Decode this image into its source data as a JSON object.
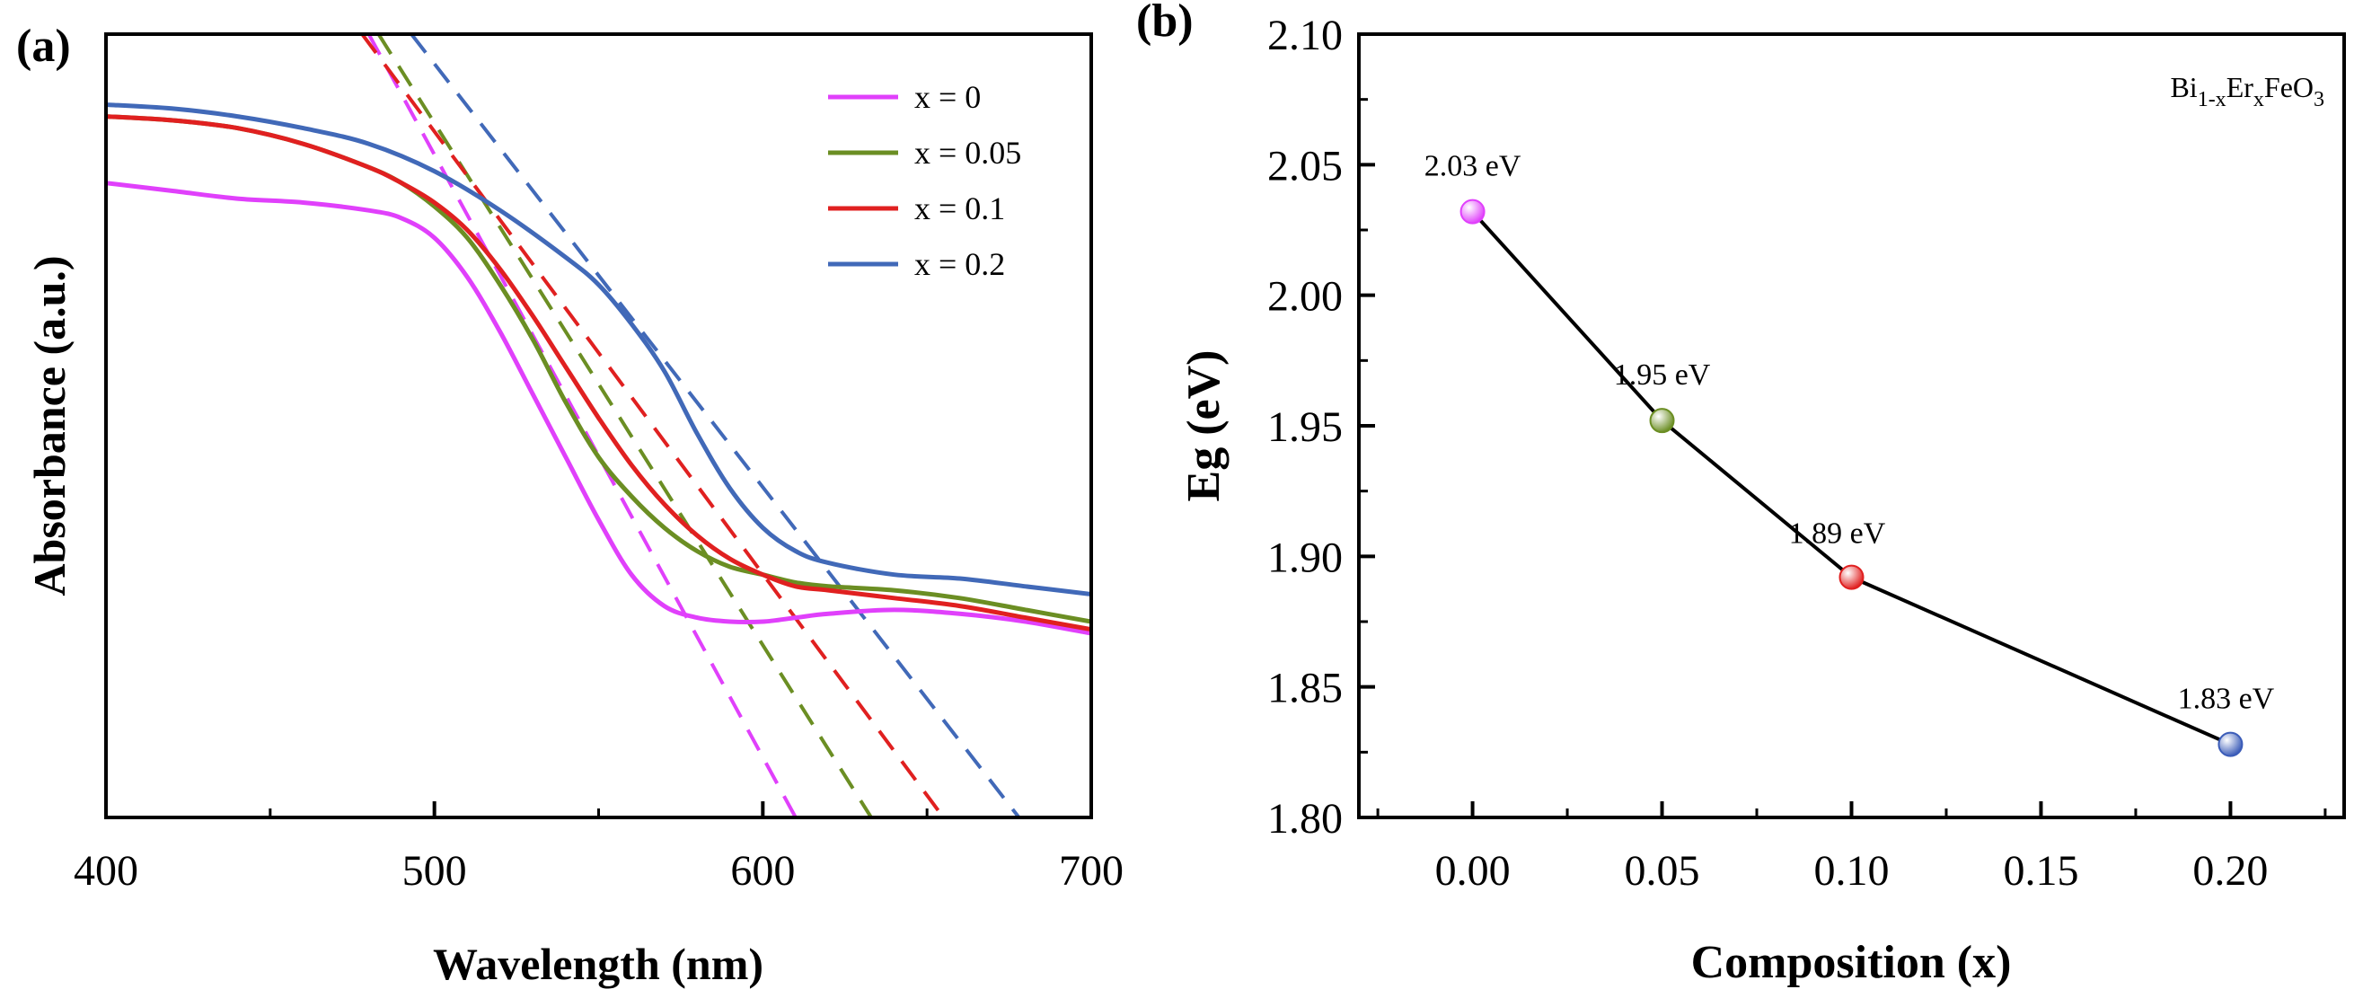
{
  "chart_data": [
    {
      "type": "line",
      "panel_label": "(a)",
      "title": "",
      "xlabel": "Wavelength (nm)",
      "ylabel": "Absorbance (a.u.)",
      "xlim": [
        400,
        700
      ],
      "ylim": [
        0,
        1
      ],
      "x_ticks": [
        "400",
        "500",
        "600",
        "700"
      ],
      "y_ticks": [],
      "legend_position": "top-right",
      "series": [
        {
          "name": "x = 0",
          "color": "#e040fb",
          "x": [
            400,
            420,
            440,
            460,
            480,
            490,
            500,
            510,
            520,
            530,
            540,
            550,
            560,
            570,
            580,
            590,
            600,
            610,
            620,
            640,
            660,
            680,
            700
          ],
          "y": [
            0.81,
            0.8,
            0.79,
            0.785,
            0.775,
            0.765,
            0.74,
            0.69,
            0.62,
            0.54,
            0.46,
            0.38,
            0.31,
            0.27,
            0.255,
            0.25,
            0.25,
            0.255,
            0.26,
            0.265,
            0.26,
            0.25,
            0.235
          ],
          "tangent": [
            [
              480,
              1.0
            ],
            [
              610,
              0.0
            ]
          ]
        },
        {
          "name": "x = 0.05",
          "color": "#6b8e23",
          "x": [
            400,
            420,
            440,
            460,
            480,
            490,
            500,
            510,
            520,
            530,
            540,
            550,
            560,
            570,
            580,
            590,
            600,
            610,
            620,
            640,
            660,
            680,
            700
          ],
          "y": [
            0.895,
            0.89,
            0.88,
            0.86,
            0.83,
            0.81,
            0.78,
            0.74,
            0.68,
            0.61,
            0.53,
            0.46,
            0.41,
            0.37,
            0.34,
            0.32,
            0.31,
            0.3,
            0.295,
            0.29,
            0.28,
            0.265,
            0.25
          ],
          "tangent": [
            [
              483,
              1.0
            ],
            [
              633,
              0.0
            ]
          ]
        },
        {
          "name": "x = 0.1",
          "color": "#e02020",
          "x": [
            400,
            420,
            440,
            460,
            480,
            490,
            500,
            510,
            520,
            530,
            540,
            550,
            560,
            570,
            580,
            590,
            600,
            610,
            620,
            640,
            660,
            680,
            700
          ],
          "y": [
            0.895,
            0.89,
            0.88,
            0.86,
            0.83,
            0.81,
            0.785,
            0.75,
            0.7,
            0.64,
            0.575,
            0.51,
            0.45,
            0.4,
            0.36,
            0.33,
            0.31,
            0.295,
            0.29,
            0.28,
            0.27,
            0.255,
            0.24
          ],
          "tangent": [
            [
              478,
              1.0
            ],
            [
              655,
              0.0
            ]
          ]
        },
        {
          "name": "x = 0.2",
          "color": "#4169b8",
          "x": [
            400,
            420,
            440,
            460,
            480,
            500,
            520,
            540,
            550,
            560,
            570,
            580,
            590,
            600,
            610,
            620,
            640,
            660,
            680,
            700
          ],
          "y": [
            0.91,
            0.905,
            0.895,
            0.88,
            0.86,
            0.825,
            0.775,
            0.715,
            0.68,
            0.63,
            0.57,
            0.49,
            0.42,
            0.37,
            0.34,
            0.325,
            0.31,
            0.305,
            0.295,
            0.285
          ],
          "tangent": [
            [
              493,
              1.0
            ],
            [
              678,
              0.0
            ]
          ]
        }
      ]
    },
    {
      "type": "line",
      "panel_label": "(b)",
      "title": "",
      "xlabel": "Composition (x)",
      "ylabel": "Eg (eV)",
      "xlim": [
        -0.03,
        0.23
      ],
      "ylim": [
        1.8,
        2.1
      ],
      "x_ticks": [
        "0.00",
        "0.05",
        "0.10",
        "0.15",
        "0.20"
      ],
      "y_ticks": [
        "1.80",
        "1.85",
        "1.90",
        "1.95",
        "2.00",
        "2.05",
        "2.10"
      ],
      "formula": {
        "base1": "Bi",
        "sub1": "1-x",
        "base2": "Er",
        "sub2": "x",
        "base3": "FeO",
        "sub3": "3"
      },
      "series": [
        {
          "name": "Eg",
          "color": "#000000",
          "x": [
            0.0,
            0.05,
            0.1,
            0.2
          ],
          "y": [
            2.032,
            1.952,
            1.892,
            1.828
          ],
          "labels": [
            "2.03 eV",
            "1.95 eV",
            "1.89 eV",
            "1.83 eV"
          ],
          "point_colors": [
            "#e040fb",
            "#6b8e23",
            "#e02020",
            "#3b5cb8"
          ]
        }
      ]
    }
  ]
}
